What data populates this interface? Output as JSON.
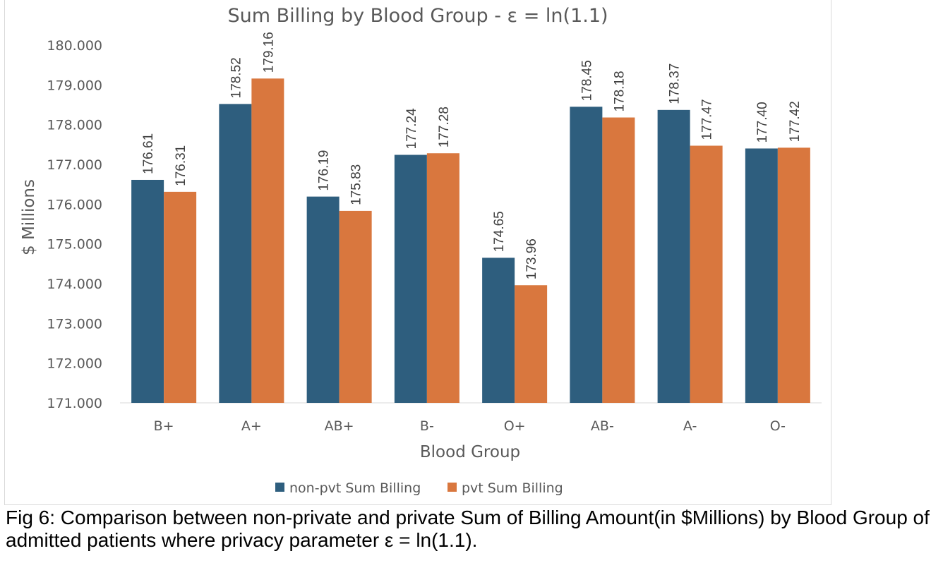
{
  "chart_data": {
    "type": "bar",
    "title": "Sum Billing by Blood Group - ε = ln(1.1)",
    "xlabel": "Blood Group",
    "ylabel": "$ Millions",
    "categories": [
      "B+",
      "A+",
      "AB+",
      "B-",
      "O+",
      "AB-",
      "A-",
      "O-"
    ],
    "series": [
      {
        "name": "non-pvt Sum Billing",
        "color": "#2e5e7e",
        "values": [
          176.61,
          178.52,
          176.19,
          177.24,
          174.65,
          178.45,
          178.37,
          177.4
        ]
      },
      {
        "name": "pvt Sum Billing",
        "color": "#d9773e",
        "values": [
          176.31,
          179.16,
          175.83,
          177.28,
          173.96,
          178.18,
          177.47,
          177.42
        ]
      }
    ],
    "data_labels": [
      [
        "176.61",
        "178.52",
        "176.19",
        "177.24",
        "174.65",
        "178.45",
        "178.37",
        "177.40"
      ],
      [
        "176.31",
        "179.16",
        "175.83",
        "177.28",
        "173.96",
        "178.18",
        "177.47",
        "177.42"
      ]
    ],
    "ylim": [
      171,
      180
    ],
    "yticks": [
      "171.000",
      "172.000",
      "173.000",
      "174.000",
      "175.000",
      "176.000",
      "177.000",
      "178.000",
      "179.000",
      "180.000"
    ],
    "grid": false,
    "legend_position": "bottom"
  },
  "caption": "Fig 6: Comparison between non-private and private Sum of Billing Amount(in $Millions) by Blood Group of admitted patients where privacy parameter ε = ln(1.1)."
}
